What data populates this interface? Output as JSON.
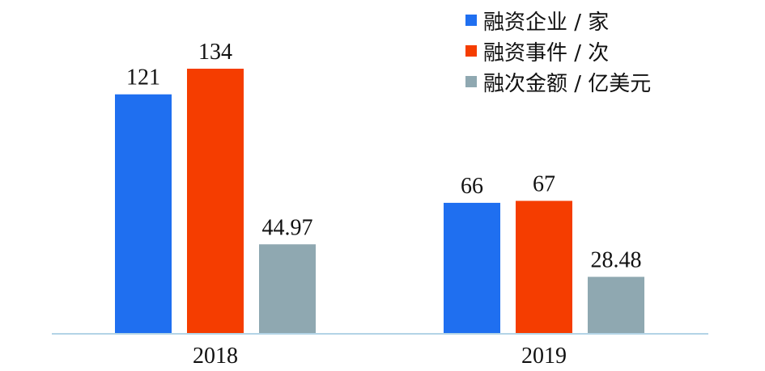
{
  "chart_data": {
    "type": "bar",
    "categories": [
      "2018",
      "2019"
    ],
    "series": [
      {
        "name": "融资企业 / 家",
        "values": [
          121,
          66
        ],
        "color": "#1f6ff0"
      },
      {
        "name": "融资事件 / 次",
        "values": [
          134,
          67
        ],
        "color": "#f53d00"
      },
      {
        "name": "融次金额 / 亿美元",
        "values": [
          44.97,
          28.48
        ],
        "color": "#8fa8b1"
      }
    ],
    "data_labels": [
      [
        "121",
        "66"
      ],
      [
        "134",
        "67"
      ],
      [
        "44.97",
        "28.48"
      ]
    ],
    "ylim": [
      0,
      134
    ],
    "grid": false,
    "legend_position": "top-right",
    "axis_color": "#b3d4e6"
  }
}
